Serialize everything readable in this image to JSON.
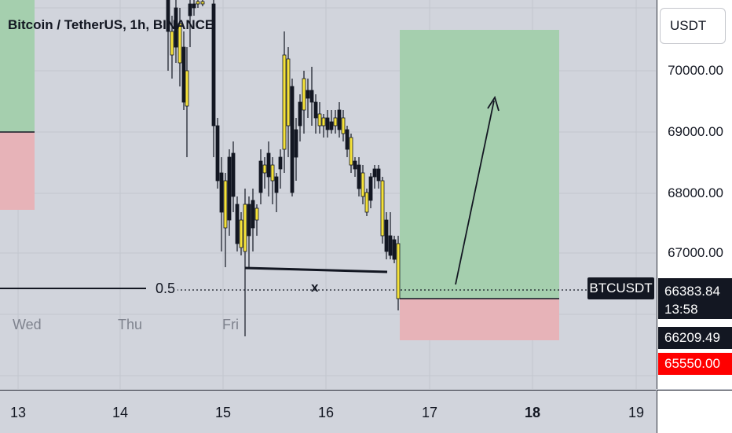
{
  "header": {
    "title": "Bitcoin / TetherUS, 1h, BINANCE"
  },
  "price_axis": {
    "currency_button": "USDT",
    "labels": [
      "70000.00",
      "69000.00",
      "68000.00",
      "67000.00"
    ],
    "last_price": "66383.84",
    "countdown": "13:58",
    "entry_price": "66209.49",
    "stop_price": "65550.00"
  },
  "overlay": {
    "symbol": "BTCUSDT",
    "fib_label": "0.5",
    "marker": "x",
    "days": [
      "Wed",
      "Thu",
      "Fri"
    ]
  },
  "time_axis": {
    "labels": [
      "13",
      "14",
      "15",
      "16",
      "17",
      "18",
      "19"
    ]
  },
  "colors": {
    "background": "#d1d4dc",
    "profit_zone": "#a5cfae",
    "loss_zone": "#e7b3b8",
    "candle_up": "#f5e23a",
    "candle_down": "#131722",
    "stop_tag": "#ff0000",
    "price_tag": "#131722"
  }
}
